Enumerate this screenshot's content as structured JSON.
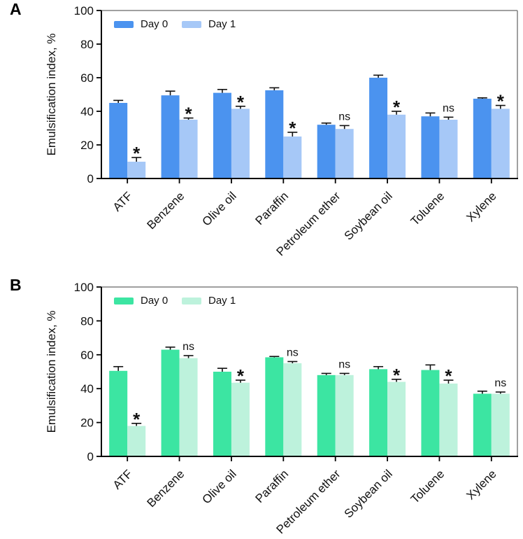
{
  "figure": {
    "background": "#ffffff",
    "panels": [
      {
        "label": "A"
      },
      {
        "label": "B"
      }
    ]
  },
  "chart_data": [
    {
      "type": "bar",
      "panel": "A",
      "title": "",
      "xlabel": "",
      "ylabel": "Emulsification index, %",
      "ylim": [
        0,
        100
      ],
      "yticks": [
        0,
        20,
        40,
        60,
        80,
        100
      ],
      "grid": false,
      "legend_position": "top-left-inside",
      "categories": [
        "ATF",
        "Benzene",
        "Olive oil",
        "Paraffin",
        "Petroleum ether",
        "Soybean oil",
        "Toluene",
        "Xylene"
      ],
      "series": [
        {
          "name": "Day 0",
          "color": "#4b93ef",
          "values": [
            45,
            49.5,
            51,
            52.5,
            32,
            60,
            37,
            47.5
          ],
          "errors": [
            1.5,
            2.5,
            2,
            1.5,
            1,
            1.5,
            2,
            0.5
          ]
        },
        {
          "name": "Day 1",
          "color": "#a6c8f7",
          "values": [
            10,
            35,
            41.5,
            25,
            29.5,
            38,
            35,
            41.5
          ],
          "errors": [
            2.5,
            1,
            1.5,
            2.5,
            2,
            2,
            1.5,
            2
          ]
        }
      ],
      "significance": [
        "*",
        "*",
        "*",
        "*",
        "ns",
        "*",
        "ns",
        "*"
      ],
      "axis_color": "#000000",
      "frame_color": "#808080",
      "error_bar_color": "#111111",
      "text_color": "#111111"
    },
    {
      "type": "bar",
      "panel": "B",
      "title": "",
      "xlabel": "",
      "ylabel": "Emulsification index, %",
      "ylim": [
        0,
        100
      ],
      "yticks": [
        0,
        20,
        40,
        60,
        80,
        100
      ],
      "grid": false,
      "legend_position": "top-left-inside",
      "categories": [
        "ATF",
        "Benzene",
        "Olive oil",
        "Paraffin",
        "Petroleum ether",
        "Soybean oil",
        "Toluene",
        "Xylene"
      ],
      "series": [
        {
          "name": "Day 0",
          "color": "#3ce5a2",
          "values": [
            50.5,
            63,
            50,
            58.5,
            48,
            51.5,
            51,
            37
          ],
          "errors": [
            2.5,
            1.5,
            2,
            0.5,
            1,
            1.5,
            3,
            1.5
          ]
        },
        {
          "name": "Day 1",
          "color": "#bdf2dc",
          "values": [
            18,
            58,
            43.5,
            55,
            48,
            44,
            43,
            37
          ],
          "errors": [
            1.5,
            1.5,
            1.5,
            1,
            1,
            1.5,
            2,
            1
          ]
        }
      ],
      "significance": [
        "*",
        "ns",
        "*",
        "ns",
        "ns",
        "*",
        "*",
        "ns"
      ],
      "axis_color": "#000000",
      "frame_color": "#808080",
      "error_bar_color": "#111111",
      "text_color": "#111111"
    }
  ]
}
